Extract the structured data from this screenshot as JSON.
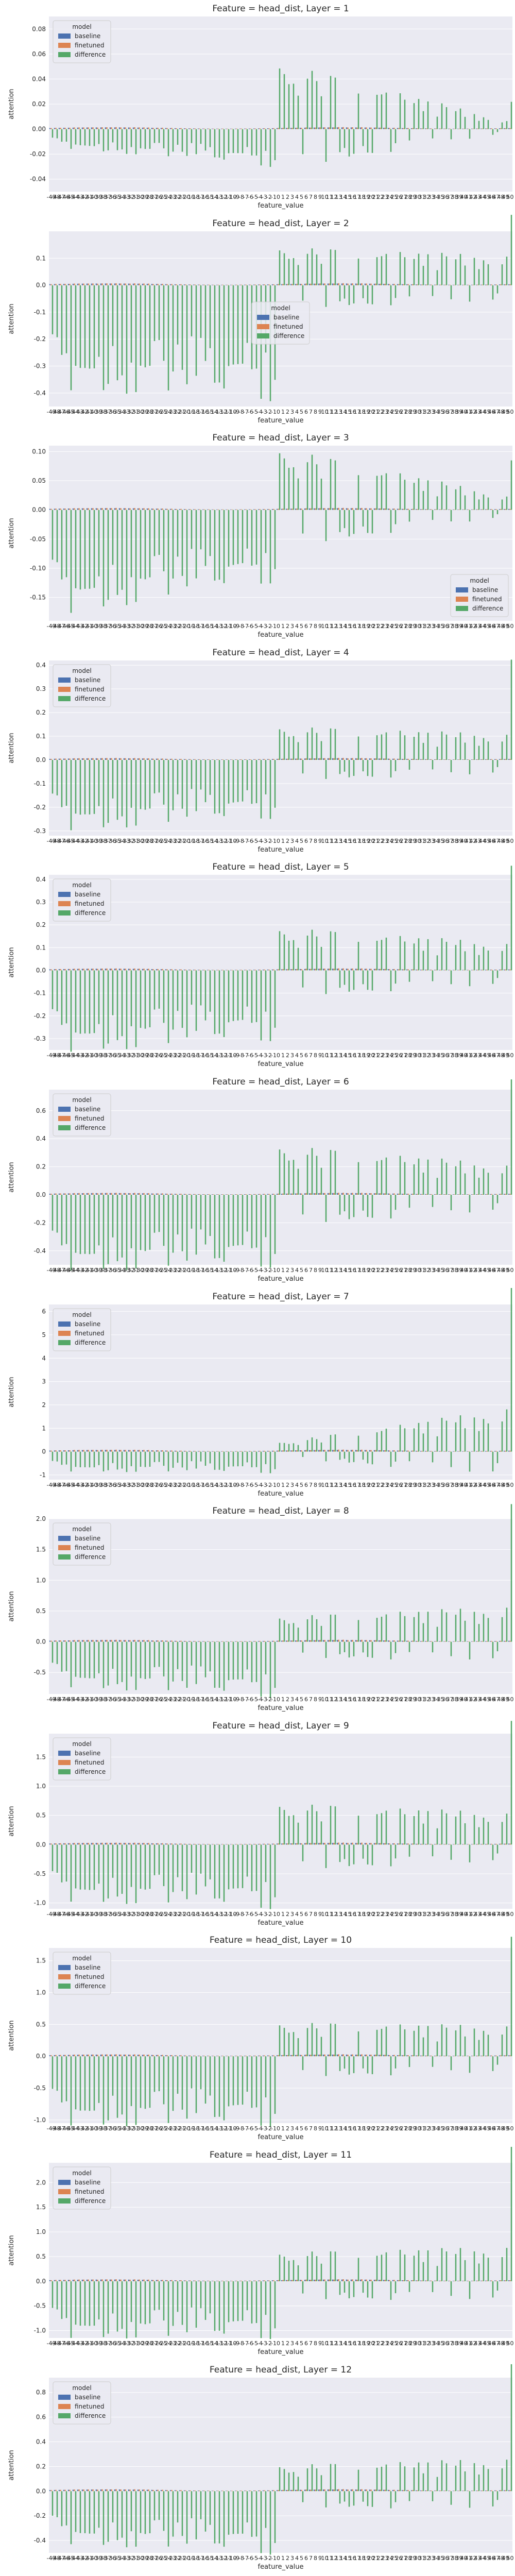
{
  "title_template": "Feature = head_dist, Layer = {n}",
  "legend_title": "model",
  "series_names": [
    "baseline",
    "finetuned",
    "difference"
  ],
  "colors": {
    "baseline": "#4c72b0",
    "finetuned": "#dd8452",
    "difference": "#55a868",
    "background": "#eaeaf2",
    "grid": "#ffffff"
  },
  "chart_data": [
    {
      "type": "bar",
      "title": "Feature = head_dist, Layer = 1",
      "xlabel": "feature_value",
      "ylabel": "attention",
      "ylim": [
        -0.05,
        0.09
      ],
      "yticks": [
        -0.04,
        -0.02,
        0.0,
        0.02,
        0.04,
        0.06,
        0.08
      ],
      "tick_format": 2,
      "legend": "top-left",
      "x_range": [
        -49,
        50
      ]
    },
    {
      "type": "bar",
      "title": "Feature = head_dist, Layer = 2",
      "xlabel": "feature_value",
      "ylabel": "attention",
      "ylim": [
        -0.45,
        0.2
      ],
      "yticks": [
        -0.4,
        -0.3,
        -0.2,
        -0.1,
        0.0,
        0.1
      ],
      "tick_format": 1,
      "legend": "center",
      "x_range": [
        -49,
        50
      ]
    },
    {
      "type": "bar",
      "title": "Feature = head_dist, Layer = 3",
      "xlabel": "feature_value",
      "ylabel": "attention",
      "ylim": [
        -0.19,
        0.11
      ],
      "yticks": [
        -0.15,
        -0.1,
        -0.05,
        0.0,
        0.05,
        0.1
      ],
      "tick_format": 2,
      "legend": "bottom-right",
      "x_range": [
        -49,
        50
      ]
    },
    {
      "type": "bar",
      "title": "Feature = head_dist, Layer = 4",
      "xlabel": "feature_value",
      "ylabel": "attention",
      "ylim": [
        -0.32,
        0.42
      ],
      "yticks": [
        -0.3,
        -0.2,
        -0.1,
        0.0,
        0.1,
        0.2,
        0.3,
        0.4
      ],
      "tick_format": 1,
      "legend": "top-left",
      "x_range": [
        -49,
        50
      ]
    },
    {
      "type": "bar",
      "title": "Feature = head_dist, Layer = 5",
      "xlabel": "feature_value",
      "ylabel": "attention",
      "ylim": [
        -0.35,
        0.42
      ],
      "yticks": [
        -0.3,
        -0.2,
        -0.1,
        0.0,
        0.1,
        0.2,
        0.3,
        0.4
      ],
      "tick_format": 1,
      "legend": "top-left",
      "x_range": [
        -49,
        50
      ]
    },
    {
      "type": "bar",
      "title": "Feature = head_dist, Layer = 6",
      "xlabel": "feature_value",
      "ylabel": "attention",
      "ylim": [
        -0.5,
        0.75
      ],
      "yticks": [
        -0.4,
        -0.2,
        0.0,
        0.2,
        0.4,
        0.6
      ],
      "tick_format": 1,
      "legend": "top-left",
      "x_range": [
        -49,
        50
      ]
    },
    {
      "type": "bar",
      "title": "Feature = head_dist, Layer = 7",
      "xlabel": "feature_value",
      "ylabel": "attention",
      "ylim": [
        -1.2,
        6.3
      ],
      "yticks": [
        -1,
        0,
        1,
        2,
        3,
        4,
        5,
        6
      ],
      "tick_format": 0,
      "legend": "top-left",
      "x_range": [
        -49,
        50
      ]
    },
    {
      "type": "bar",
      "title": "Feature = head_dist, Layer = 8",
      "xlabel": "feature_value",
      "ylabel": "attention",
      "ylim": [
        -0.85,
        2.0
      ],
      "yticks": [
        -0.5,
        0.0,
        0.5,
        1.0,
        1.5,
        2.0
      ],
      "tick_format": 1,
      "legend": "top-left",
      "x_range": [
        -49,
        50
      ]
    },
    {
      "type": "bar",
      "title": "Feature = head_dist, Layer = 9",
      "xlabel": "feature_value",
      "ylabel": "attention",
      "ylim": [
        -1.1,
        1.9
      ],
      "yticks": [
        -1.0,
        -0.5,
        0.0,
        0.5,
        1.0,
        1.5
      ],
      "tick_format": 1,
      "legend": "top-left",
      "x_range": [
        -49,
        50
      ]
    },
    {
      "type": "bar",
      "title": "Feature = head_dist, Layer = 10",
      "xlabel": "feature_value",
      "ylabel": "attention",
      "ylim": [
        -1.05,
        1.7
      ],
      "yticks": [
        -1.0,
        -0.5,
        0.0,
        0.5,
        1.0,
        1.5
      ],
      "tick_format": 1,
      "legend": "top-left",
      "x_range": [
        -49,
        50
      ]
    },
    {
      "type": "bar",
      "title": "Feature = head_dist, Layer = 11",
      "xlabel": "feature_value",
      "ylabel": "attention",
      "ylim": [
        -1.15,
        2.4
      ],
      "yticks": [
        -1.0,
        -0.5,
        0.0,
        0.5,
        1.0,
        1.5,
        2.0
      ],
      "tick_format": 1,
      "legend": "top-left",
      "x_range": [
        -49,
        50
      ]
    },
    {
      "type": "bar",
      "title": "Feature = head_dist, Layer = 12",
      "xlabel": "feature_value",
      "ylabel": "attention",
      "ylim": [
        -0.5,
        0.92
      ],
      "yticks": [
        -0.4,
        -0.2,
        0.0,
        0.2,
        0.4,
        0.6,
        0.8
      ],
      "tick_format": 1,
      "legend": "top-left",
      "x_range": [
        -49,
        50
      ]
    }
  ]
}
